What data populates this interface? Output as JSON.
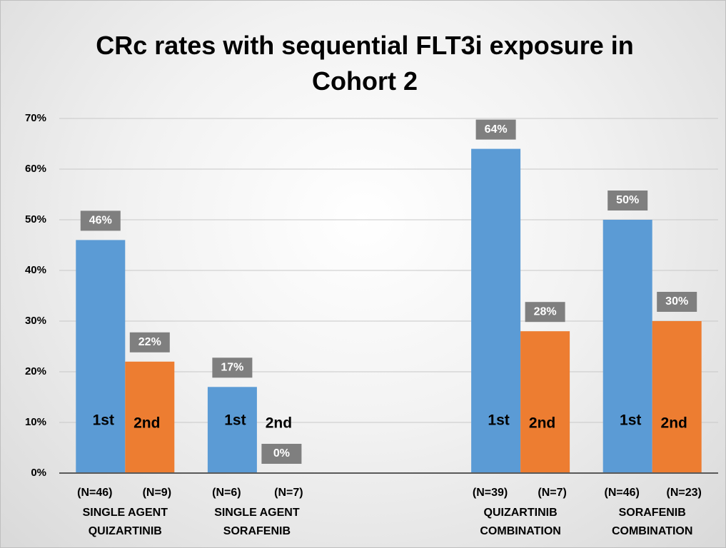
{
  "chart_data": {
    "type": "bar",
    "title": "CRc rates with sequential FLT3i exposure in Cohort 2",
    "categories": [
      [
        "SINGLE AGENT",
        "QUIZARTINIB"
      ],
      [
        "SINGLE AGENT",
        "SORAFENIB"
      ],
      null,
      [
        "QUIZARTINIB",
        "COMBINATION"
      ],
      [
        "SORAFENIB",
        "COMBINATION"
      ]
    ],
    "series": [
      {
        "name": "1st",
        "color": "#5b9bd5",
        "values": [
          46,
          17,
          null,
          64,
          50
        ],
        "value_labels": [
          "46%",
          "17%",
          null,
          "64%",
          "50%"
        ],
        "n_labels": [
          "(N=46)",
          "(N=6)",
          null,
          "(N=39)",
          "(N=46)"
        ]
      },
      {
        "name": "2nd",
        "color": "#ed7d31",
        "values": [
          22,
          0,
          null,
          28,
          30
        ],
        "value_labels": [
          "22%",
          "0%",
          null,
          "28%",
          "30%"
        ],
        "n_labels": [
          "(N=9)",
          "(N=7)",
          null,
          "(N=7)",
          "(N=23)"
        ]
      }
    ],
    "ylim": [
      0,
      70
    ],
    "yticks": [
      {
        "value": 0,
        "label": "0%"
      },
      {
        "value": 10,
        "label": "10%"
      },
      {
        "value": 20,
        "label": "20%"
      },
      {
        "value": 30,
        "label": "30%"
      },
      {
        "value": 40,
        "label": "40%"
      },
      {
        "value": 50,
        "label": "50%"
      },
      {
        "value": 60,
        "label": "60%"
      },
      {
        "value": 70,
        "label": "70%"
      }
    ],
    "grid": true
  }
}
